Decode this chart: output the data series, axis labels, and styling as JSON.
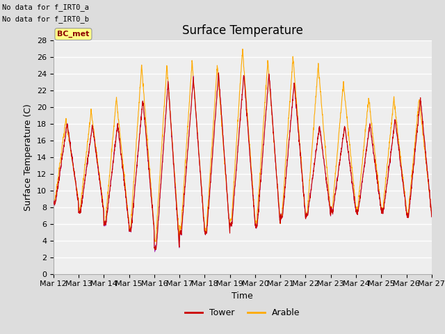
{
  "title": "Surface Temperature",
  "ylabel": "Surface Temperature (C)",
  "xlabel": "Time",
  "ylim": [
    0,
    28
  ],
  "yticks": [
    0,
    2,
    4,
    6,
    8,
    10,
    12,
    14,
    16,
    18,
    20,
    22,
    24,
    26,
    28
  ],
  "xtick_labels": [
    "Mar 12",
    "Mar 13",
    "Mar 14",
    "Mar 15",
    "Mar 16",
    "Mar 17",
    "Mar 18",
    "Mar 19",
    "Mar 20",
    "Mar 21",
    "Mar 22",
    "Mar 23",
    "Mar 24",
    "Mar 25",
    "Mar 26",
    "Mar 27"
  ],
  "tower_color": "#cc0000",
  "arable_color": "#ffaa00",
  "bc_met_color": "#9900aa",
  "legend_tower": "Tower",
  "legend_arable": "Arable",
  "bc_met_label": "BC_met",
  "no_data_text1": "No data for f_IRT0_a",
  "no_data_text2": "No data for f_IRT0_b",
  "bg_color": "#dddddd",
  "plot_bg_color": "#eeeeee",
  "grid_color": "#ffffff",
  "title_fontsize": 12,
  "label_fontsize": 9,
  "tick_fontsize": 8,
  "day_mins_tower": [
    8.5,
    7.5,
    6.0,
    5.2,
    3.0,
    5.0,
    5.0,
    6.0,
    5.8,
    6.8,
    7.0,
    7.5,
    7.5,
    7.5,
    7.0
  ],
  "day_maxs_tower": [
    18.0,
    17.8,
    18.0,
    21.0,
    23.0,
    23.5,
    24.0,
    24.0,
    24.0,
    23.0,
    17.8,
    17.8,
    18.0,
    18.5,
    21.0
  ],
  "day_mins_arable": [
    8.8,
    7.8,
    6.2,
    5.5,
    4.0,
    5.5,
    5.2,
    6.5,
    6.2,
    7.0,
    7.2,
    7.8,
    7.8,
    7.8,
    7.2
  ],
  "day_maxs_arable": [
    18.5,
    19.5,
    21.0,
    25.0,
    25.0,
    25.5,
    25.0,
    27.0,
    25.5,
    26.0,
    25.0,
    23.0,
    21.0,
    21.0,
    21.0
  ]
}
